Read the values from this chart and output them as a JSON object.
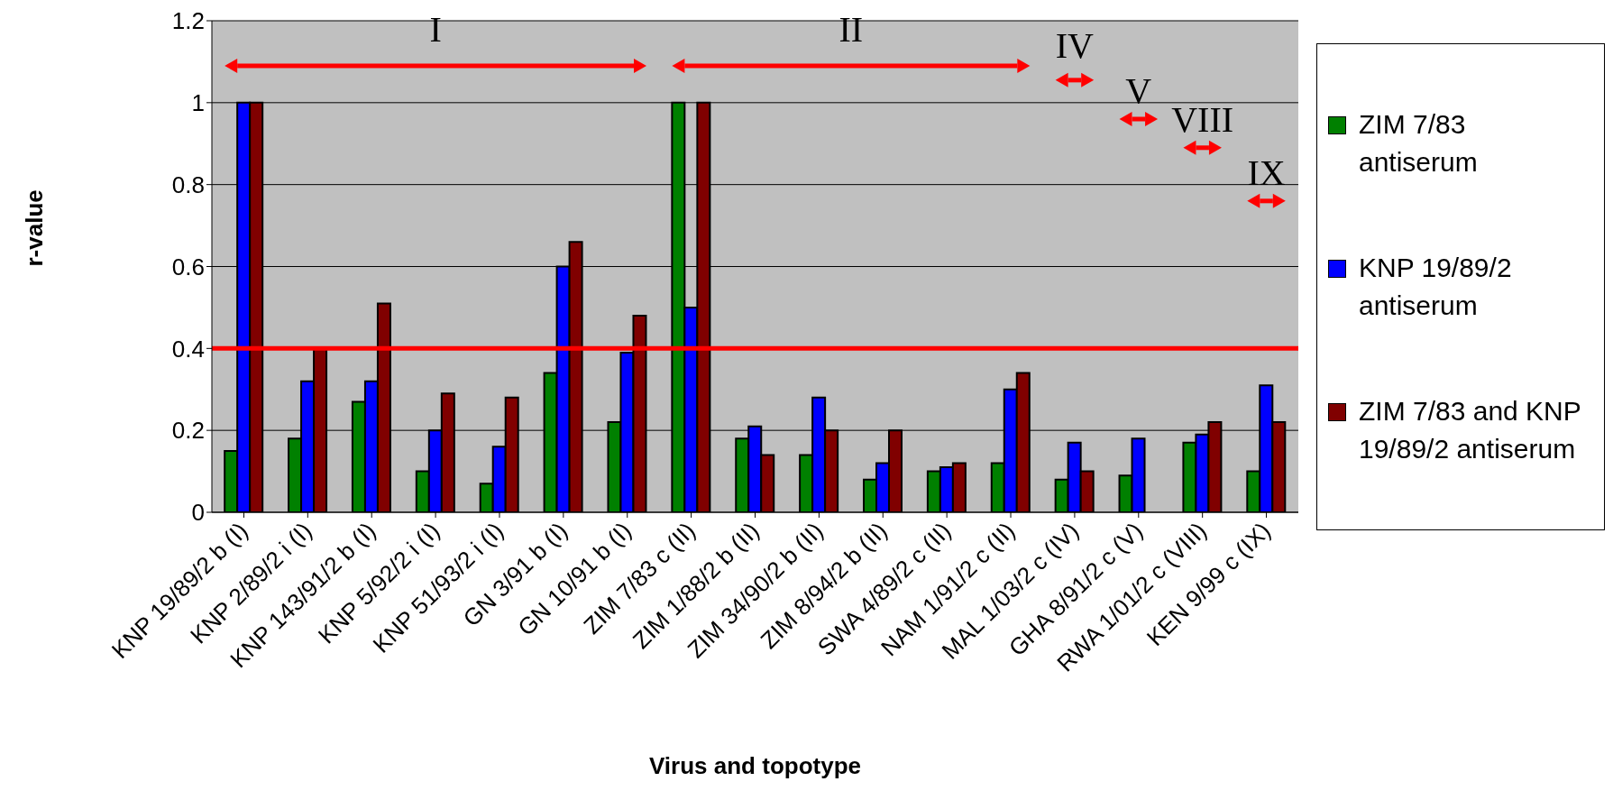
{
  "chart_data": {
    "type": "bar",
    "xlabel": "Virus and topotype",
    "ylabel": "r-value",
    "categories": [
      "KNP 19/89/2 b (I)",
      "KNP 2/89/2 i (I)",
      "KNP 143/91/2 b (I)",
      "KNP 5/92/2 i (I)",
      "KNP 51/93/2 i (I)",
      "GN 3/91 b (I)",
      "GN 10/91 b (I)",
      "ZIM 7/83 c (II)",
      "ZIM 1/88/2 b (II)",
      "ZIM 34/90/2 b (II)",
      "ZIM 8/94/2 b (II)",
      "SWA 4/89/2 c (II)",
      "NAM 1/91/2 c (II)",
      "MAL 1/03/2 c (IV)",
      "GHA 8/91/2 c (V)",
      "RWA 1/01/2 c (VIII)",
      "KEN 9/99 c (IX)"
    ],
    "series": [
      {
        "name": "ZIM 7/83 antiserum",
        "color": "#008000",
        "values": [
          0.15,
          0.18,
          0.27,
          0.1,
          0.07,
          0.34,
          0.22,
          1,
          0.18,
          0.14,
          0.08,
          0.1,
          0.12,
          0.08,
          0.09,
          0.17,
          0.1
        ]
      },
      {
        "name": "KNP 19/89/2 antiserum",
        "color": "#0000ff",
        "values": [
          1,
          0.32,
          0.32,
          0.2,
          0.16,
          0.6,
          0.39,
          0.5,
          0.21,
          0.28,
          0.12,
          0.11,
          0.3,
          0.17,
          0.18,
          0.19,
          0.31
        ]
      },
      {
        "name": "ZIM 7/83 and KNP 19/89/2 antiserum",
        "color": "#800000",
        "values": [
          1,
          0.4,
          0.51,
          0.29,
          0.28,
          0.66,
          0.48,
          1,
          0.14,
          0.2,
          0.2,
          0.12,
          0.34,
          0.1,
          null,
          0.22,
          0.22
        ]
      }
    ],
    "ylim": [
      0,
      1.2
    ],
    "yticks": [
      0,
      0.2,
      0.4,
      0.6,
      0.8,
      1,
      1.2
    ],
    "grid": "y",
    "legend": "right",
    "ref_lines": [
      {
        "axis": "y",
        "value": 0.4,
        "color": "#ff0000"
      }
    ],
    "annotations": [
      "I",
      "II",
      "IV",
      "V",
      "VIII",
      "IX"
    ]
  }
}
